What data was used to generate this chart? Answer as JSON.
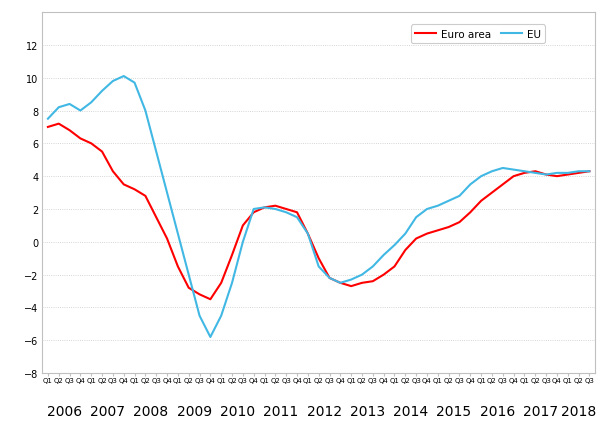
{
  "euro_area": [
    7.0,
    7.2,
    6.8,
    6.3,
    6.0,
    5.5,
    4.3,
    3.5,
    3.2,
    2.8,
    1.5,
    0.2,
    -1.5,
    -2.8,
    -3.2,
    -3.5,
    -2.5,
    -0.8,
    1.0,
    1.8,
    2.1,
    2.2,
    2.0,
    1.8,
    0.5,
    -1.0,
    -2.2,
    -2.5,
    -2.7,
    -2.5,
    -2.4,
    -2.0,
    -1.5,
    -0.5,
    0.2,
    0.5,
    0.7,
    0.9,
    1.2,
    1.8,
    2.5,
    3.0,
    3.5,
    4.0,
    4.2,
    4.3,
    4.1,
    4.0,
    4.1,
    4.2,
    4.3
  ],
  "eu": [
    7.5,
    8.2,
    8.4,
    8.0,
    8.5,
    9.2,
    9.8,
    10.1,
    9.7,
    8.0,
    5.5,
    3.0,
    0.5,
    -2.0,
    -4.5,
    -5.8,
    -4.5,
    -2.5,
    0.0,
    2.0,
    2.1,
    2.0,
    1.8,
    1.5,
    0.5,
    -1.5,
    -2.2,
    -2.5,
    -2.3,
    -2.0,
    -1.5,
    -0.8,
    -0.2,
    0.5,
    1.5,
    2.0,
    2.2,
    2.5,
    2.8,
    3.5,
    4.0,
    4.3,
    4.5,
    4.4,
    4.3,
    4.2,
    4.1,
    4.2,
    4.2,
    4.3,
    4.3
  ],
  "years": [
    2006,
    2007,
    2008,
    2009,
    2010,
    2011,
    2012,
    2013,
    2014,
    2015,
    2016,
    2017,
    2018
  ],
  "q_counts": [
    4,
    4,
    4,
    4,
    4,
    4,
    4,
    4,
    4,
    4,
    4,
    4,
    3
  ],
  "euro_color": "#ff0000",
  "eu_color": "#41b8e4",
  "ylim": [
    -8,
    14
  ],
  "yticks": [
    -8,
    -6,
    -4,
    -2,
    0,
    2,
    4,
    6,
    8,
    10,
    12
  ],
  "euro_label": "Euro area",
  "eu_label": "EU",
  "background_color": "#ffffff",
  "grid_color": "#c8c8c8",
  "box_color": "#c0c0c0"
}
